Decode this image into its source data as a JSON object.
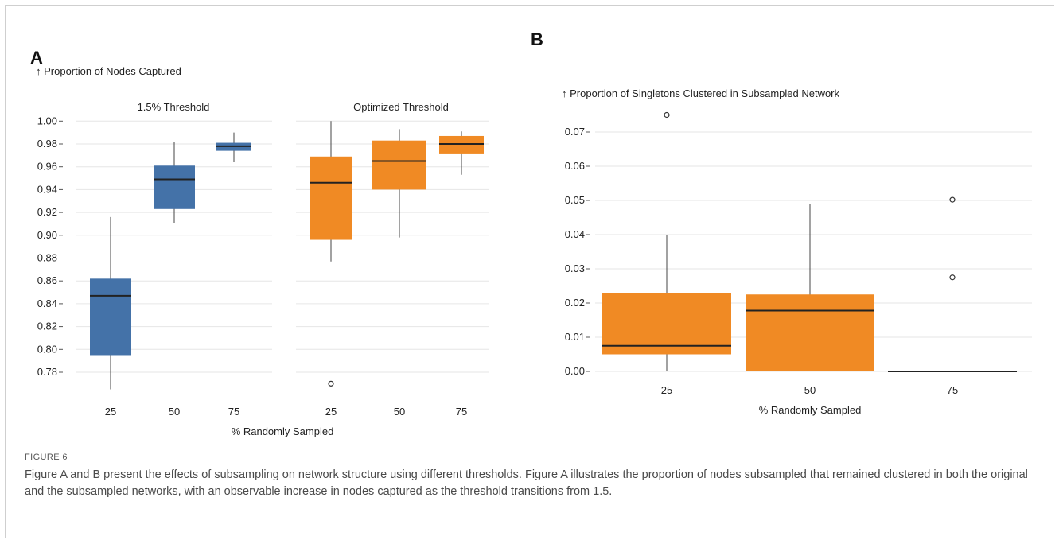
{
  "figure": {
    "label": "FIGURE 6",
    "caption": "Figure A and B present the effects of subsampling on network structure using different thresholds. Figure A illustrates the proportion of nodes subsampled that remained clustered in both the original and the subsampled networks, with an observable increase in nodes captured as the threshold transitions from 1.5."
  },
  "chart_data": [
    {
      "panel": "A",
      "type": "box",
      "ylabel": "↑ Proportion of Nodes Captured",
      "xlabel": "% Randomly Sampled",
      "ylim": [
        0.765,
        1.0
      ],
      "yticks": [
        "0.78",
        "0.80",
        "0.82",
        "0.84",
        "0.86",
        "0.88",
        "0.90",
        "0.92",
        "0.94",
        "0.96",
        "0.98",
        "1.00"
      ],
      "grid": true,
      "facets": [
        {
          "title": "1.5% Threshold",
          "color": "#4472a8",
          "categories": [
            "25",
            "50",
            "75"
          ],
          "boxes": [
            {
              "x": "25",
              "min": 0.765,
              "q1": 0.795,
              "median": 0.847,
              "q3": 0.862,
              "max": 0.916,
              "outliers": []
            },
            {
              "x": "50",
              "min": 0.911,
              "q1": 0.923,
              "median": 0.949,
              "q3": 0.961,
              "max": 0.982,
              "outliers": []
            },
            {
              "x": "75",
              "min": 0.964,
              "q1": 0.974,
              "median": 0.978,
              "q3": 0.981,
              "max": 0.99,
              "outliers": []
            }
          ]
        },
        {
          "title": "Optimized Threshold",
          "color": "#f08a24",
          "categories": [
            "25",
            "50",
            "75"
          ],
          "boxes": [
            {
              "x": "25",
              "min": 0.877,
              "q1": 0.896,
              "median": 0.946,
              "q3": 0.969,
              "max": 1.0,
              "outliers": [
                0.77
              ]
            },
            {
              "x": "50",
              "min": 0.898,
              "q1": 0.94,
              "median": 0.965,
              "q3": 0.983,
              "max": 0.993,
              "outliers": []
            },
            {
              "x": "75",
              "min": 0.953,
              "q1": 0.971,
              "median": 0.98,
              "q3": 0.987,
              "max": 0.991,
              "outliers": []
            }
          ]
        }
      ]
    },
    {
      "panel": "B",
      "type": "box",
      "ylabel": "↑ Proportion of Singletons Clustered in Subsampled Network",
      "xlabel": "% Randomly Sampled",
      "ylim": [
        0,
        0.078
      ],
      "yticks": [
        "0.00",
        "0.01",
        "0.02",
        "0.03",
        "0.04",
        "0.05",
        "0.06",
        "0.07"
      ],
      "grid": true,
      "color": "#f08a24",
      "categories": [
        "25",
        "50",
        "75"
      ],
      "boxes": [
        {
          "x": "25",
          "min": 0.0,
          "q1": 0.005,
          "median": 0.0075,
          "q3": 0.023,
          "max": 0.04,
          "outliers": [
            0.075
          ]
        },
        {
          "x": "50",
          "min": 0.0,
          "q1": 0.0,
          "median": 0.0178,
          "q3": 0.0225,
          "max": 0.049,
          "outliers": []
        },
        {
          "x": "75",
          "min": 0.0,
          "q1": 0.0,
          "median": 0.0,
          "q3": 0.0,
          "max": 0.0,
          "outliers": [
            0.0502,
            0.0275
          ]
        }
      ]
    }
  ]
}
